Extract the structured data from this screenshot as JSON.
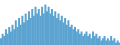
{
  "chart_data": {
    "type": "bar",
    "categories": [
      null,
      null,
      null,
      null,
      null,
      null,
      null,
      null,
      null,
      null,
      null,
      null,
      null,
      null,
      null,
      null,
      null,
      null,
      null,
      null,
      null,
      null,
      null,
      null,
      null,
      null,
      null,
      null,
      null,
      null,
      null,
      null,
      null,
      null,
      null,
      null,
      null,
      null,
      null,
      null,
      null,
      null,
      null,
      null,
      null,
      null,
      null,
      null,
      null,
      null,
      null,
      null,
      null,
      null,
      null,
      null,
      null,
      null,
      null,
      null,
      null,
      null,
      null,
      null,
      null,
      null,
      null,
      null,
      null,
      null,
      null,
      null,
      null
    ],
    "values": [
      3,
      5,
      4,
      7,
      5,
      8,
      6,
      9,
      7,
      11,
      8,
      12,
      9,
      13,
      10,
      14,
      11,
      15,
      12,
      16,
      13,
      17,
      14,
      16,
      13,
      17,
      14,
      18,
      15,
      17,
      14,
      16,
      13,
      15,
      12,
      14,
      11,
      13,
      10,
      12,
      9,
      11,
      8,
      9,
      7,
      8,
      6,
      7,
      5,
      6,
      4,
      5,
      6,
      4,
      5,
      3,
      6,
      4,
      5,
      3,
      4,
      2,
      3,
      4,
      2,
      3,
      2,
      4,
      2,
      3,
      1,
      2,
      1
    ],
    "color": "#5ba3d0",
    "ylim": [
      0,
      20
    ],
    "tick_labels": false
  }
}
